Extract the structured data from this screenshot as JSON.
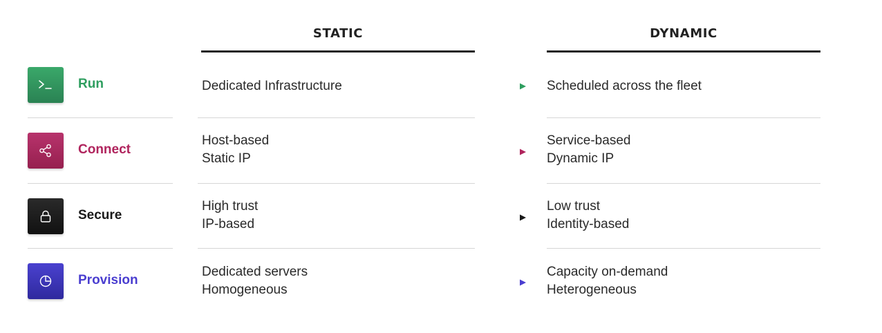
{
  "columns": {
    "static": "STATIC",
    "dynamic": "DYNAMIC"
  },
  "rows": [
    {
      "label": "Run",
      "icon": "terminal-icon",
      "color": "#2e9e5f",
      "icon_bg": "#2f8f5a",
      "static": [
        "Dedicated Infrastructure"
      ],
      "dynamic": [
        "Scheduled across the fleet"
      ]
    },
    {
      "label": "Connect",
      "icon": "share-icon",
      "color": "#b0245d",
      "icon_bg": "#a6285e",
      "static": [
        "Host-based",
        "Static IP"
      ],
      "dynamic": [
        "Service-based",
        "Dynamic IP"
      ]
    },
    {
      "label": "Secure",
      "icon": "lock-icon",
      "color": "#1a1a1a",
      "icon_bg": "#1c1c1c",
      "static": [
        "High trust",
        "IP-based"
      ],
      "dynamic": [
        "Low trust",
        "Identity-based"
      ]
    },
    {
      "label": "Provision",
      "icon": "pie-chart-icon",
      "color": "#4a3ed0",
      "icon_bg": "#3b34b8",
      "static": [
        "Dedicated servers",
        "Homogeneous"
      ],
      "dynamic": [
        "Capacity on-demand",
        "Heterogeneous"
      ]
    }
  ]
}
